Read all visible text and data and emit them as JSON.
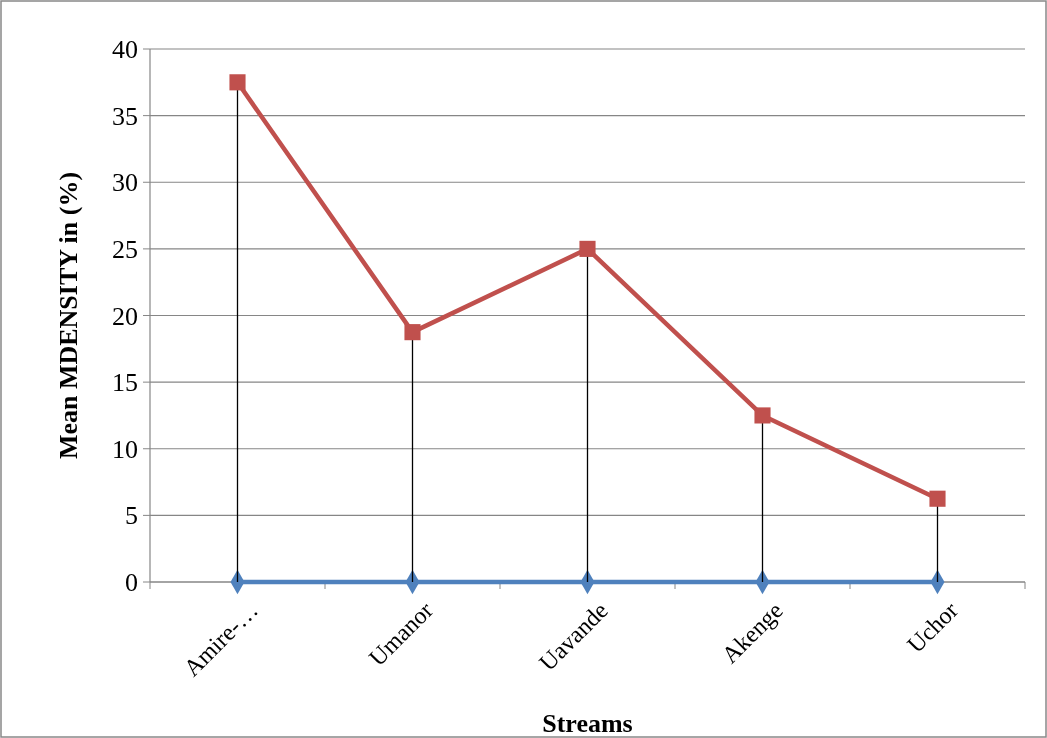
{
  "chart_data": {
    "type": "line",
    "xlabel": "Streams",
    "ylabel": "Mean MDENSITY in (%)",
    "categories": [
      "Amire-…",
      "Umanor",
      "Uavande",
      "Akenge",
      "Uchor"
    ],
    "ylim": [
      0,
      40
    ],
    "yticks": [
      0,
      5,
      10,
      15,
      20,
      25,
      30,
      35,
      40
    ],
    "grid": "y",
    "series": [
      {
        "color": "#4f81bd",
        "marker": "diamond",
        "values": [
          0,
          0,
          0,
          0,
          0
        ]
      },
      {
        "color": "#c0504d",
        "marker": "square",
        "values": [
          37.5,
          18.75,
          25,
          12.5,
          6.25
        ],
        "errors": [
          [
            37.5,
            0
          ],
          [
            18.75,
            0
          ],
          [
            25,
            0
          ],
          [
            12.5,
            0
          ],
          [
            6.25,
            0
          ]
        ]
      }
    ]
  }
}
